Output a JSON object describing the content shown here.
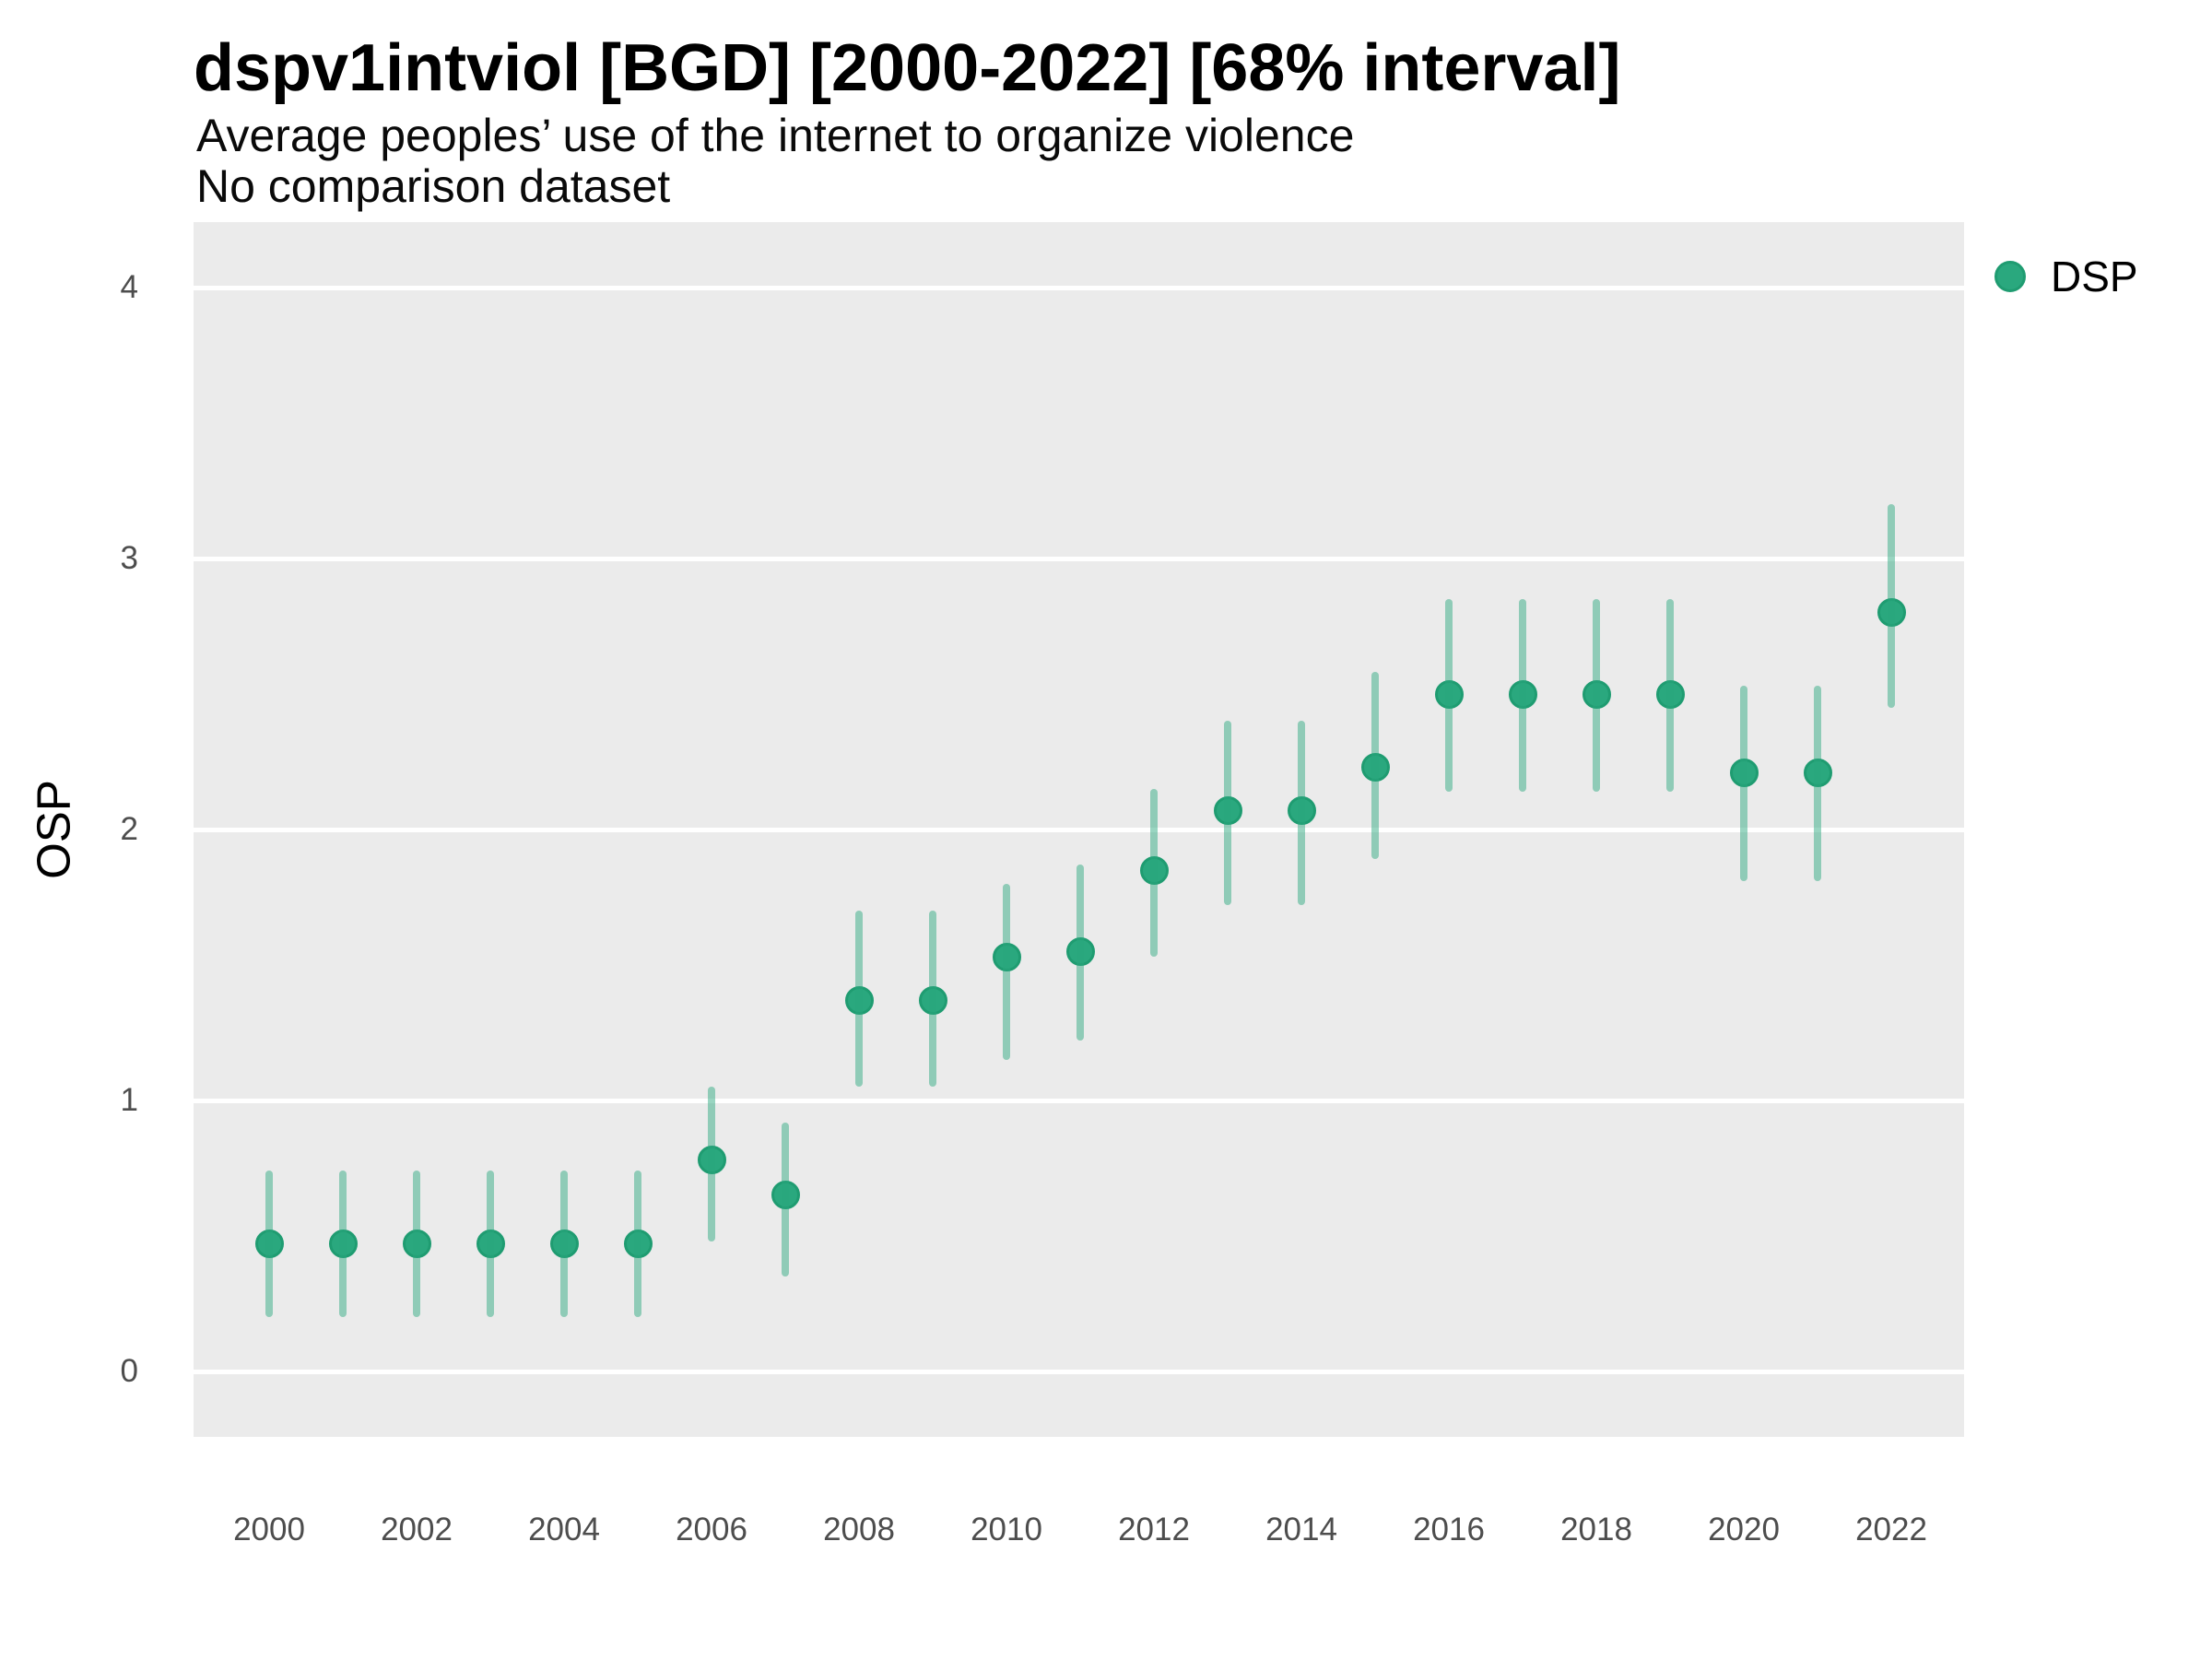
{
  "header": {
    "title": "dspv1intviol [BGD] [2000-2022] [68% interval]",
    "subtitle_line1": "Average peoples’ use of the internet to organize violence",
    "subtitle_line2": "No comparison dataset"
  },
  "colors": {
    "page_bg": "#ffffff",
    "panel_bg": "#ebebeb",
    "gridline": "#ffffff",
    "tick_text": "#4d4d4d",
    "heading_text": "#000000",
    "point_fill": "#2aa87e",
    "point_stroke": "#1f9c71",
    "range_line": "rgba(42,168,126,0.48)"
  },
  "chart_data": {
    "type": "pointrange",
    "title": "dspv1intviol [BGD] [2000-2022] [68% interval]",
    "subtitle": [
      "Average peoples’ use of the internet to organize violence",
      "No comparison dataset"
    ],
    "xlabel": "",
    "ylabel": "OSP",
    "interval": "68%",
    "grid": "horizontal-major-only",
    "legend_position": "right-top",
    "x_range": [
      2000,
      2022
    ],
    "xticks": [
      2000,
      2002,
      2004,
      2006,
      2008,
      2010,
      2012,
      2014,
      2016,
      2018,
      2020,
      2022
    ],
    "ylim": [
      -0.25,
      4.25
    ],
    "yticks": [
      0,
      1,
      2,
      3,
      4
    ],
    "series": [
      {
        "name": "DSP",
        "points": [
          {
            "x": 2000,
            "y": 0.47,
            "lo": 0.2,
            "hi": 0.74
          },
          {
            "x": 2001,
            "y": 0.47,
            "lo": 0.2,
            "hi": 0.74
          },
          {
            "x": 2002,
            "y": 0.47,
            "lo": 0.2,
            "hi": 0.74
          },
          {
            "x": 2003,
            "y": 0.47,
            "lo": 0.2,
            "hi": 0.74
          },
          {
            "x": 2004,
            "y": 0.47,
            "lo": 0.2,
            "hi": 0.74
          },
          {
            "x": 2005,
            "y": 0.47,
            "lo": 0.2,
            "hi": 0.74
          },
          {
            "x": 2006,
            "y": 0.78,
            "lo": 0.48,
            "hi": 1.05
          },
          {
            "x": 2007,
            "y": 0.65,
            "lo": 0.35,
            "hi": 0.92
          },
          {
            "x": 2008,
            "y": 1.37,
            "lo": 1.05,
            "hi": 1.7
          },
          {
            "x": 2009,
            "y": 1.37,
            "lo": 1.05,
            "hi": 1.7
          },
          {
            "x": 2010,
            "y": 1.53,
            "lo": 1.15,
            "hi": 1.8
          },
          {
            "x": 2011,
            "y": 1.55,
            "lo": 1.22,
            "hi": 1.87
          },
          {
            "x": 2012,
            "y": 1.85,
            "lo": 1.53,
            "hi": 2.15
          },
          {
            "x": 2013,
            "y": 2.07,
            "lo": 1.72,
            "hi": 2.4
          },
          {
            "x": 2014,
            "y": 2.07,
            "lo": 1.72,
            "hi": 2.4
          },
          {
            "x": 2015,
            "y": 2.23,
            "lo": 1.89,
            "hi": 2.58
          },
          {
            "x": 2016,
            "y": 2.5,
            "lo": 2.14,
            "hi": 2.85
          },
          {
            "x": 2017,
            "y": 2.5,
            "lo": 2.14,
            "hi": 2.85
          },
          {
            "x": 2018,
            "y": 2.5,
            "lo": 2.14,
            "hi": 2.85
          },
          {
            "x": 2019,
            "y": 2.5,
            "lo": 2.14,
            "hi": 2.85
          },
          {
            "x": 2020,
            "y": 2.21,
            "lo": 1.81,
            "hi": 2.53
          },
          {
            "x": 2021,
            "y": 2.21,
            "lo": 1.81,
            "hi": 2.53
          },
          {
            "x": 2022,
            "y": 2.8,
            "lo": 2.45,
            "hi": 3.2
          }
        ]
      }
    ],
    "legend": {
      "entries": [
        {
          "label": "DSP",
          "marker": "circle"
        }
      ]
    }
  }
}
